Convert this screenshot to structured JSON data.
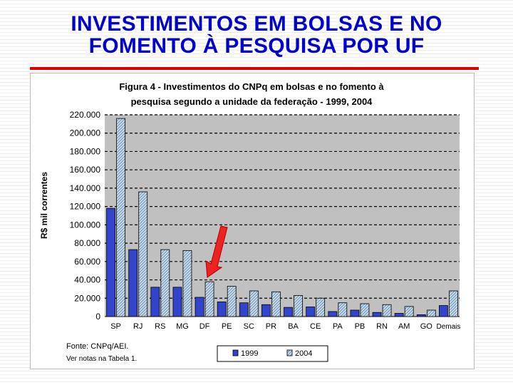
{
  "slide": {
    "title_line1": "INVESTIMENTOS EM  BOLSAS E NO",
    "title_line2": "FOMENTO À PESQUISA POR UF"
  },
  "chart_data": {
    "type": "bar",
    "title_line1": "Figura 4 - Investimentos do CNPq em bolsas e no fomento à",
    "title_line2": "pesquisa segundo a unidade da federação - 1999, 2004",
    "ylabel": "R$ mil correntes",
    "xlabel": "",
    "ylim": [
      0,
      220000
    ],
    "yticks": [
      0,
      20000,
      40000,
      60000,
      80000,
      100000,
      120000,
      140000,
      160000,
      180000,
      200000,
      220000
    ],
    "ytick_labels": [
      "0",
      "20.000",
      "40.000",
      "60.000",
      "80.000",
      "100.000",
      "120.000",
      "140.000",
      "160.000",
      "180.000",
      "200.000",
      "220.000"
    ],
    "grid": "horizontal dashed",
    "categories": [
      "SP",
      "RJ",
      "RS",
      "MG",
      "DF",
      "PE",
      "SC",
      "PR",
      "BA",
      "CE",
      "PA",
      "PB",
      "RN",
      "AM",
      "GO",
      "Demais"
    ],
    "series": [
      {
        "name": "1999",
        "color": "#3344cc",
        "values": [
          118000,
          73000,
          32000,
          32000,
          21000,
          16000,
          15000,
          13000,
          10000,
          10500,
          5500,
          7000,
          4500,
          3500,
          2000,
          12000
        ]
      },
      {
        "name": "2004",
        "color": "#a8c4dc",
        "pattern": "hatched",
        "values": [
          216000,
          136000,
          73000,
          72000,
          38000,
          33000,
          28000,
          27000,
          23000,
          20000,
          15000,
          14000,
          13000,
          11000,
          7000,
          28000
        ]
      }
    ],
    "legend_placement": "bottom-center",
    "annotation": "red arrow pointing to DF",
    "source_line1": "Fonte: CNPq/AEI.",
    "source_line2": "Ver notas na Tabela 1."
  },
  "colors": {
    "title": "#0000cc",
    "rule": "#dd0000",
    "arrow": "#ee2222",
    "plot_bg": "#c0c0c0"
  }
}
